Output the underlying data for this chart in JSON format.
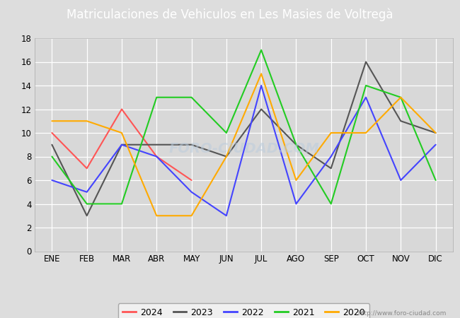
{
  "title": "Matriculaciones de Vehiculos en Les Masies de Voltregà",
  "months": [
    "ENE",
    "FEB",
    "MAR",
    "ABR",
    "MAY",
    "JUN",
    "JUL",
    "AGO",
    "SEP",
    "OCT",
    "NOV",
    "DIC"
  ],
  "series": {
    "2024": {
      "color": "#ff5555",
      "data": [
        10,
        7,
        12,
        8,
        6,
        null,
        null,
        null,
        null,
        null,
        null,
        null
      ]
    },
    "2023": {
      "color": "#555555",
      "data": [
        9,
        3,
        9,
        9,
        9,
        8,
        12,
        9,
        7,
        16,
        11,
        10
      ]
    },
    "2022": {
      "color": "#4444ff",
      "data": [
        6,
        5,
        9,
        8,
        5,
        3,
        14,
        4,
        8,
        13,
        6,
        9
      ]
    },
    "2021": {
      "color": "#22cc22",
      "data": [
        8,
        4,
        4,
        13,
        13,
        10,
        17,
        9,
        4,
        14,
        13,
        6
      ]
    },
    "2020": {
      "color": "#ffaa00",
      "data": [
        11,
        11,
        10,
        3,
        3,
        8,
        15,
        6,
        10,
        10,
        13,
        10
      ]
    }
  },
  "ylim": [
    0,
    18
  ],
  "yticks": [
    0,
    2,
    4,
    6,
    8,
    10,
    12,
    14,
    16,
    18
  ],
  "fig_bg_color": "#dddddd",
  "plot_bg_color": "#d8d8d8",
  "title_bg_color": "#5577cc",
  "title_color": "#ffffff",
  "legend_order": [
    "2024",
    "2023",
    "2022",
    "2021",
    "2020"
  ],
  "watermark": "http://www.foro-ciudad.com",
  "grid_color": "#ffffff",
  "title_fontsize": 12,
  "tick_fontsize": 8.5
}
